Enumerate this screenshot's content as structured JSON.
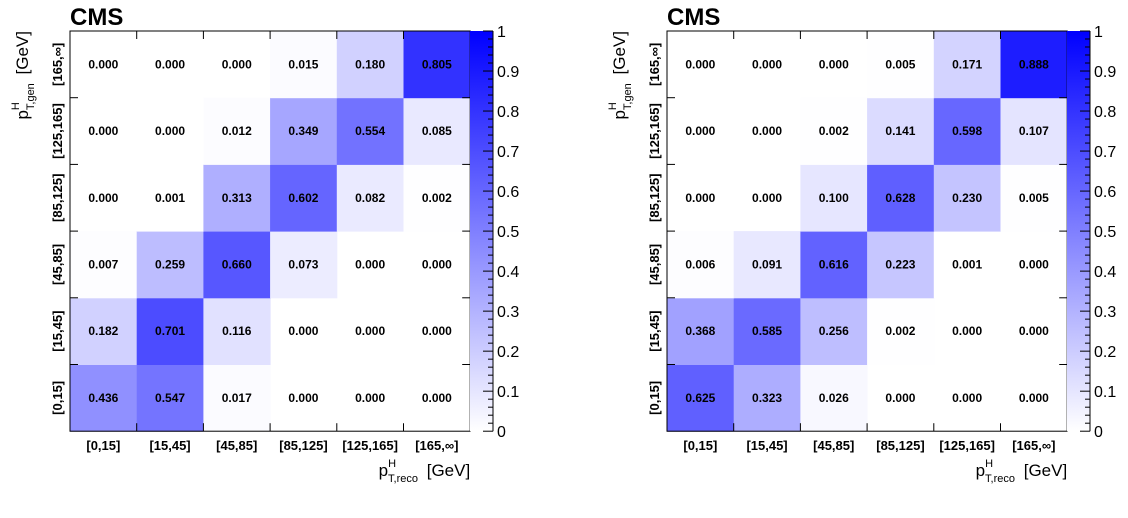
{
  "colors": {
    "high": "#0000ff",
    "low": "#ffffff"
  },
  "chart_data": [
    {
      "type": "heatmap",
      "experiment_label": "CMS",
      "x_categories": [
        "[0,15]",
        "[15,45]",
        "[45,85]",
        "[85,125]",
        "[125,165]",
        "[165,∞]"
      ],
      "y_categories": [
        "[0,15]",
        "[15,45]",
        "[45,85]",
        "[85,125]",
        "[125,165]",
        "[165,∞]"
      ],
      "xlabel": {
        "base": "p",
        "sup": "H",
        "sub": "T,reco",
        "unit": "[GeV]"
      },
      "ylabel": {
        "base": "p",
        "sup": "H",
        "sub": "T,gen",
        "unit": "[GeV]"
      },
      "values": [
        [
          0.436,
          0.547,
          0.017,
          0.0,
          0.0,
          0.0
        ],
        [
          0.182,
          0.701,
          0.116,
          0.0,
          0.0,
          0.0
        ],
        [
          0.007,
          0.259,
          0.66,
          0.073,
          0.0,
          0.0
        ],
        [
          0.0,
          0.001,
          0.313,
          0.602,
          0.082,
          0.002
        ],
        [
          0.0,
          0.0,
          0.012,
          0.349,
          0.554,
          0.085
        ],
        [
          0.0,
          0.0,
          0.0,
          0.015,
          0.18,
          0.805
        ]
      ],
      "value_format": "0.000",
      "zlim": [
        0,
        1
      ],
      "colorbar_ticks": [
        "0",
        "0.1",
        "0.2",
        "0.3",
        "0.4",
        "0.5",
        "0.6",
        "0.7",
        "0.8",
        "0.9",
        "1"
      ],
      "colorbar_tick_values": [
        0,
        0.1,
        0.2,
        0.3,
        0.4,
        0.5,
        0.6,
        0.7,
        0.8,
        0.9,
        1
      ]
    },
    {
      "type": "heatmap",
      "experiment_label": "CMS",
      "x_categories": [
        "[0,15]",
        "[15,45]",
        "[45,85]",
        "[85,125]",
        "[125,165]",
        "[165,∞]"
      ],
      "y_categories": [
        "[0,15]",
        "[15,45]",
        "[45,85]",
        "[85,125]",
        "[125,165]",
        "[165,∞]"
      ],
      "xlabel": {
        "base": "p",
        "sup": "H",
        "sub": "T,reco",
        "unit": "[GeV]"
      },
      "ylabel": {
        "base": "p",
        "sup": "H",
        "sub": "T,gen",
        "unit": "[GeV]"
      },
      "values": [
        [
          0.625,
          0.323,
          0.026,
          0.0,
          0.0,
          0.0
        ],
        [
          0.368,
          0.585,
          0.256,
          0.002,
          0.0,
          0.0
        ],
        [
          0.006,
          0.091,
          0.616,
          0.223,
          0.001,
          0.0
        ],
        [
          0.0,
          0.0,
          0.1,
          0.628,
          0.23,
          0.005
        ],
        [
          0.0,
          0.0,
          0.002,
          0.141,
          0.598,
          0.107
        ],
        [
          0.0,
          0.0,
          0.0,
          0.005,
          0.171,
          0.888
        ]
      ],
      "value_format": "0.000",
      "zlim": [
        0,
        1
      ],
      "colorbar_ticks": [
        "0",
        "0.1",
        "0.2",
        "0.3",
        "0.4",
        "0.5",
        "0.6",
        "0.7",
        "0.8",
        "0.9",
        "1"
      ],
      "colorbar_tick_values": [
        0,
        0.1,
        0.2,
        0.3,
        0.4,
        0.5,
        0.6,
        0.7,
        0.8,
        0.9,
        1
      ]
    }
  ]
}
